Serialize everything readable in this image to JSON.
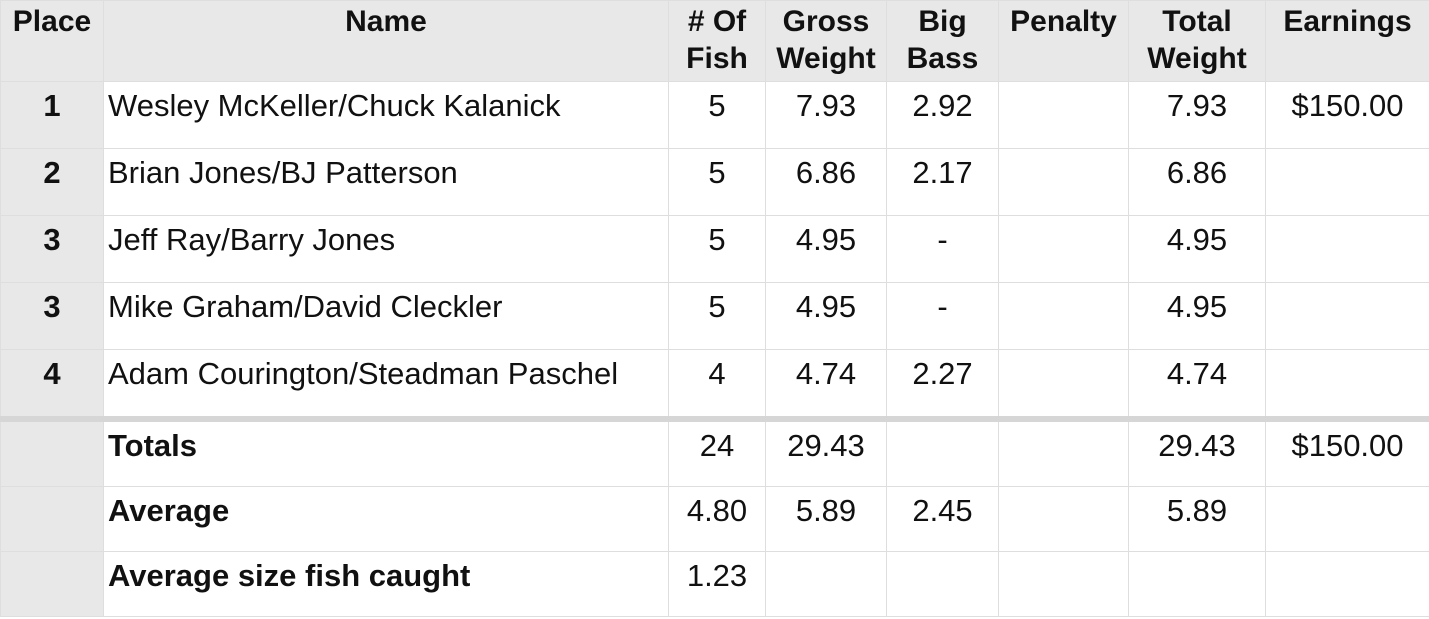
{
  "table": {
    "header": [
      "Place",
      "Name",
      "# Of Fish",
      "Gross Weight",
      "Big Bass",
      "Penalty",
      "Total Weight",
      "Earnings"
    ],
    "rows": [
      [
        "1",
        "Wesley McKeller/Chuck Kalanick",
        "5",
        "7.93",
        "2.92",
        null,
        "7.93",
        "$150.00"
      ],
      [
        "2",
        "Brian Jones/BJ Patterson",
        "5",
        "6.86",
        "2.17",
        null,
        "6.86",
        null
      ],
      [
        "3",
        "Jeff Ray/Barry Jones",
        "5",
        "4.95",
        "-",
        null,
        "4.95",
        null
      ],
      [
        "3",
        "Mike Graham/David Cleckler",
        "5",
        "4.95",
        "-",
        null,
        "4.95",
        null
      ],
      [
        "4",
        "Adam Courington/Steadman Paschel",
        "4",
        "4.74",
        "2.27",
        null,
        "4.74",
        null
      ]
    ],
    "summary": [
      [
        null,
        "Totals",
        "24",
        "29.43",
        null,
        null,
        "29.43",
        "$150.00"
      ],
      [
        null,
        "Average",
        "4.80",
        "5.89",
        "2.45",
        null,
        "5.89",
        null
      ],
      [
        null,
        "Average size fish caught",
        "1.23",
        null,
        null,
        null,
        null,
        null
      ]
    ]
  }
}
